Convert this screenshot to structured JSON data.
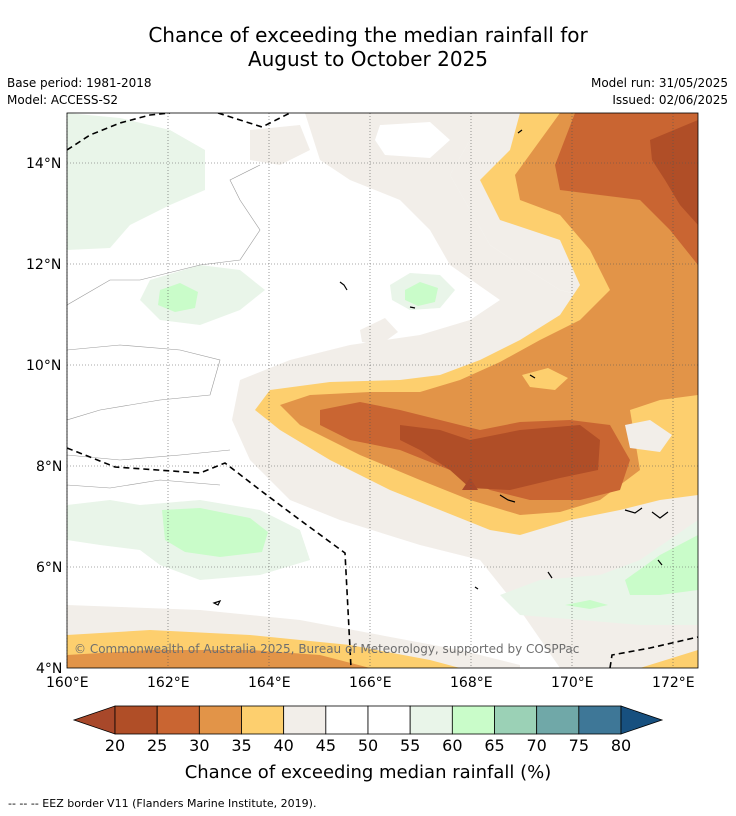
{
  "title": {
    "line1": "Chance of exceeding the median rainfall for",
    "line2": "August to October 2025"
  },
  "meta": {
    "base_period": "Base period: 1981-2018",
    "model": "Model: ACCESS-S2",
    "model_run": "Model run: 31/05/2025",
    "issued": "Issued: 02/06/2025"
  },
  "axes": {
    "lat_ticks": [
      "14°N",
      "12°N",
      "10°N",
      "8°N",
      "6°N",
      "4°N"
    ],
    "lon_ticks": [
      "160°E",
      "162°E",
      "164°E",
      "166°E",
      "168°E",
      "170°E",
      "172°E"
    ]
  },
  "colorbar": {
    "labels": [
      "20",
      "25",
      "30",
      "35",
      "40",
      "45",
      "50",
      "55",
      "60",
      "65",
      "70",
      "75",
      "80"
    ],
    "colors": [
      "#a8482a",
      "#b04e27",
      "#c96532",
      "#e29448",
      "#fdcf6e",
      "#f2eee9",
      "#ffffff",
      "#ffffff",
      "#e9f5e9",
      "#c9fcc9",
      "#9bd1b6",
      "#70a8a8",
      "#3e7797",
      "#17507f"
    ],
    "title": "Chance of exceeding median rainfall (%)"
  },
  "copyright": "© Commonwealth of Australia 2025, Bureau of Meteorology, supported by COSPPac",
  "footnote": "-- -- -- EEZ border V11 (Flanders Marine Institute, 2019)."
}
